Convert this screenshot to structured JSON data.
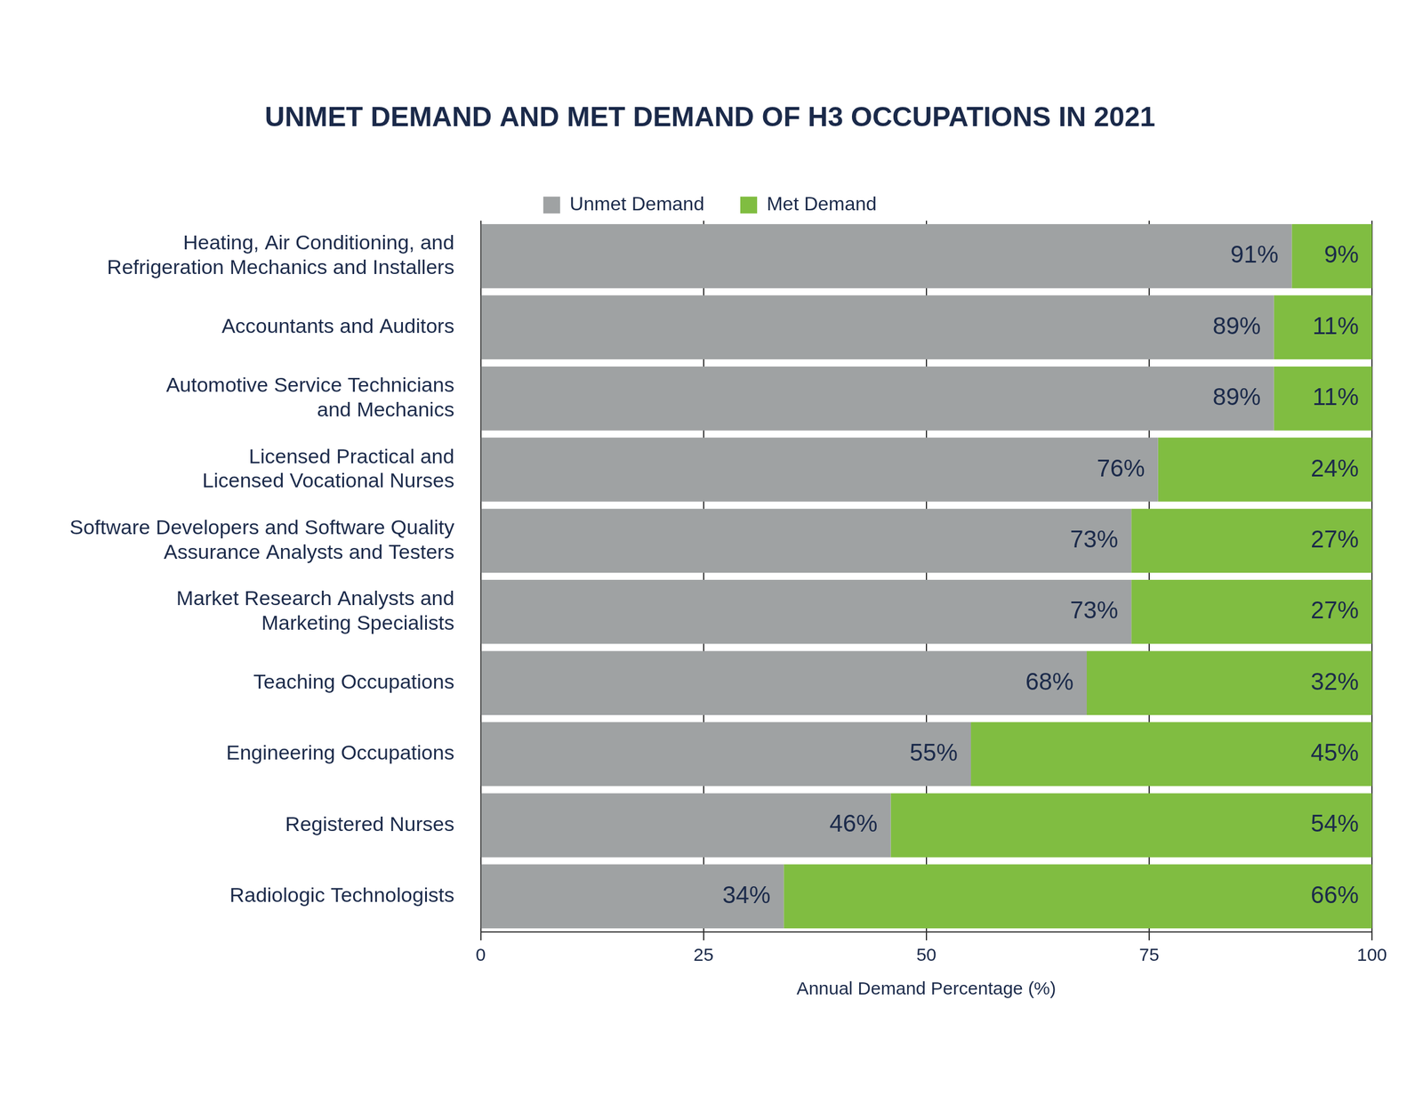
{
  "chart_data": {
    "type": "bar",
    "orientation": "horizontal",
    "stacked": true,
    "title": "UNMET DEMAND AND MET DEMAND OF H3 OCCUPATIONS IN 2021",
    "xlabel": "Annual Demand Percentage (%)",
    "categories": [
      "Heating, Air Conditioning, and\nRefrigeration Mechanics and Installers",
      "Accountants and Auditors",
      "Automotive Service Technicians\nand Mechanics",
      "Licensed Practical and\nLicensed Vocational Nurses",
      "Software Developers and Software Quality\nAssurance Analysts and Testers",
      "Market Research Analysts and\nMarketing Specialists",
      "Teaching Occupations",
      "Engineering Occupations",
      "Registered Nurses",
      "Radiologic Technologists"
    ],
    "series": [
      {
        "name": "Unmet Demand",
        "color": "#9fa2a3",
        "values": [
          91,
          89,
          89,
          76,
          73,
          73,
          68,
          55,
          46,
          34
        ],
        "value_labels": [
          "91%",
          "89%",
          "89%",
          "76%",
          "73%",
          "73%",
          "68%",
          "55%",
          "46%",
          "34%"
        ]
      },
      {
        "name": "Met Demand",
        "color": "#80bd41",
        "values": [
          9,
          11,
          11,
          24,
          27,
          27,
          32,
          45,
          54,
          66
        ],
        "value_labels": [
          "9%",
          "11%",
          "11%",
          "24%",
          "27%",
          "27%",
          "32%",
          "45%",
          "54%",
          "66%"
        ]
      }
    ],
    "xlim": [
      0,
      100
    ],
    "xticks": [
      0,
      25,
      50,
      75,
      100
    ],
    "grid": true,
    "legend": "top",
    "data_labels": true
  }
}
